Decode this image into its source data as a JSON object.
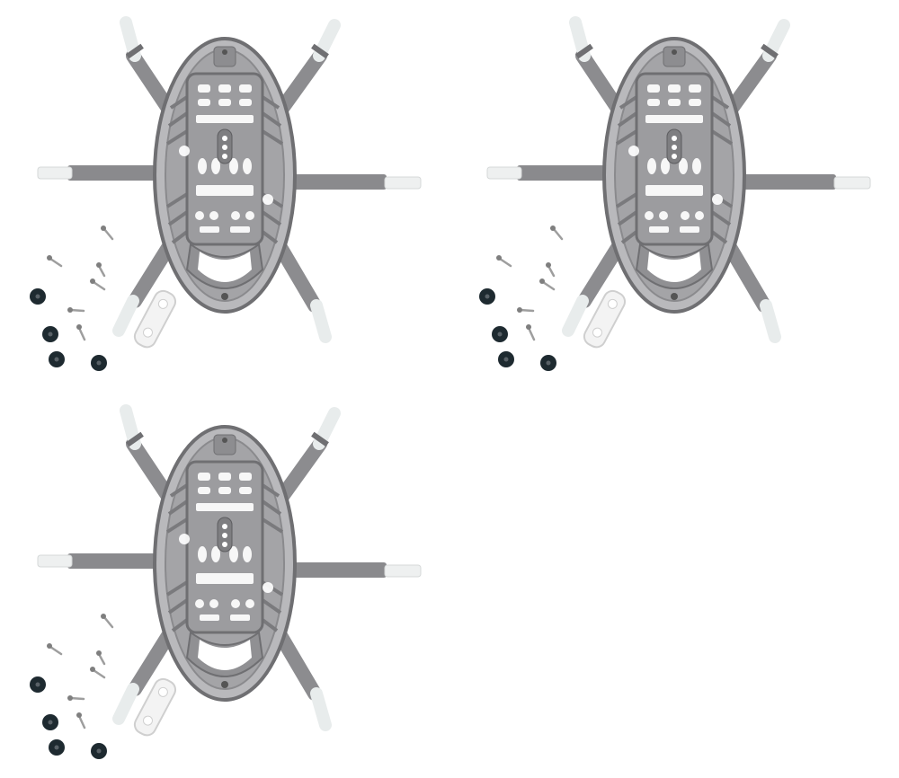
{
  "kits": [
    {
      "id": "kit-1"
    },
    {
      "id": "kit-2"
    },
    {
      "id": "kit-3"
    }
  ],
  "colors": {
    "background": "#ffffff",
    "frame": "#9a9a9c",
    "frame_dark": "#6f6f72",
    "frame_light": "#c4c4c6",
    "leg_tip": "#eef0f0",
    "washer": "#1e2a30",
    "screw": "#a9a9a9",
    "clip": "#f4f4f4"
  },
  "icons": {
    "frame": "drone-frame-icon",
    "screw": "screw-icon",
    "washer": "washer-icon",
    "clip": "clip-icon"
  }
}
